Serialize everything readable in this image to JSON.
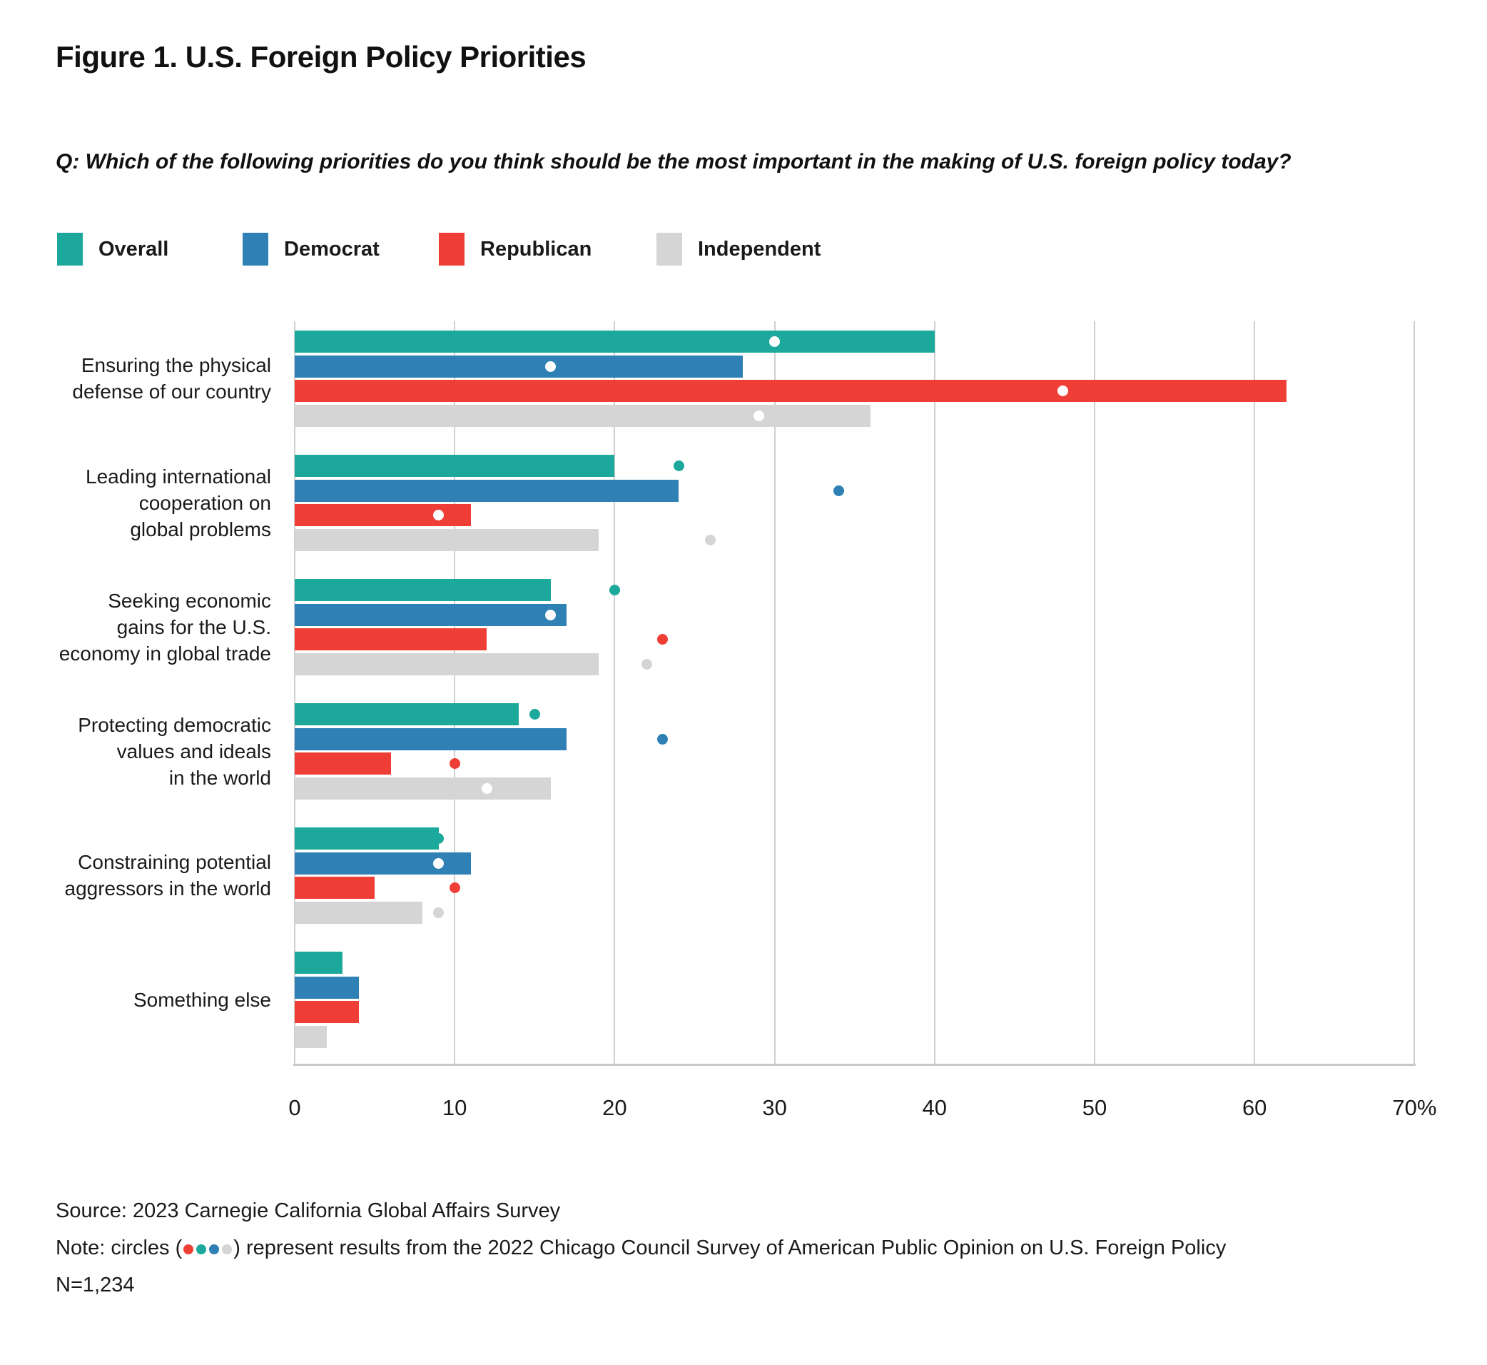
{
  "figure": {
    "title": "Figure 1. U.S. Foreign Policy Priorities",
    "question": "Q: Which of the following priorities do you think should be the most important in the making of U.S. foreign policy today?"
  },
  "legend": {
    "items": [
      {
        "label": "Overall",
        "color": "#1ca99c"
      },
      {
        "label": "Democrat",
        "color": "#2e80b5"
      },
      {
        "label": "Republican",
        "color": "#ee3e36"
      },
      {
        "label": "Independent",
        "color": "#d5d5d5"
      }
    ]
  },
  "chart_data": {
    "type": "bar",
    "orientation": "horizontal",
    "unit": "percent",
    "title": "Figure 1. U.S. Foreign Policy Priorities",
    "categories": [
      "Ensuring the physical defense of our country",
      "Leading international cooperation on global problems",
      "Seeking economic gains for the U.S. economy in global trade",
      "Protecting democratic values and ideals in the world",
      "Constraining potential aggressors in the world",
      "Something else"
    ],
    "category_label_lines": [
      [
        "Ensuring the physical",
        "defense of our country"
      ],
      [
        "Leading international",
        "cooperation on",
        "global problems"
      ],
      [
        "Seeking economic",
        "gains for the U.S.",
        "economy in global trade"
      ],
      [
        "Protecting democratic",
        "values and ideals",
        "in the world"
      ],
      [
        "Constraining potential",
        "aggressors in the world"
      ],
      [
        "Something else"
      ]
    ],
    "series": [
      {
        "name": "Overall",
        "color": "#1ca99c",
        "values": [
          40,
          20,
          16,
          14,
          9,
          3
        ],
        "dots": [
          30,
          24,
          20,
          15,
          9,
          null
        ]
      },
      {
        "name": "Democrat",
        "color": "#2e80b5",
        "values": [
          28,
          24,
          17,
          17,
          11,
          4
        ],
        "dots": [
          16,
          34,
          16,
          23,
          9,
          null
        ]
      },
      {
        "name": "Republican",
        "color": "#ee3e36",
        "values": [
          62,
          11,
          12,
          6,
          5,
          4
        ],
        "dots": [
          48,
          9,
          23,
          10,
          10,
          null
        ]
      },
      {
        "name": "Independent",
        "color": "#d5d5d5",
        "values": [
          36,
          19,
          19,
          16,
          8,
          2
        ],
        "dots": [
          29,
          26,
          22,
          12,
          9,
          null
        ]
      }
    ],
    "x_ticks": [
      0,
      10,
      20,
      30,
      40,
      50,
      60,
      70
    ],
    "x_tick_labels": [
      "0",
      "10",
      "20",
      "30",
      "40",
      "50",
      "60",
      "70%"
    ],
    "xlim": [
      0,
      70
    ],
    "grid": "vertical",
    "legend_position": "top",
    "dots_meaning": "circles represent results from the 2022 Chicago Council Survey of American Public Opinion on U.S. Foreign Policy"
  },
  "footer": {
    "source": "Source: 2023 Carnegie California Global Affairs Survey",
    "note_prefix": "Note: circles (",
    "note_dot_colors": [
      "#ee3e36",
      "#1ca99c",
      "#2e80b5",
      "#d5d5d5"
    ],
    "note_suffix": ") represent results from the 2022 Chicago Council Survey of American Public Opinion on U.S. Foreign Policy",
    "sample_size": "N=1,234"
  },
  "colors": {
    "overall": "#1ca99c",
    "democrat": "#2e80b5",
    "republican": "#ee3e36",
    "independent": "#d5d5d5",
    "gridline": "#cfcfcf",
    "axis": "#c8c8c8",
    "text": "#1a1a1a"
  }
}
